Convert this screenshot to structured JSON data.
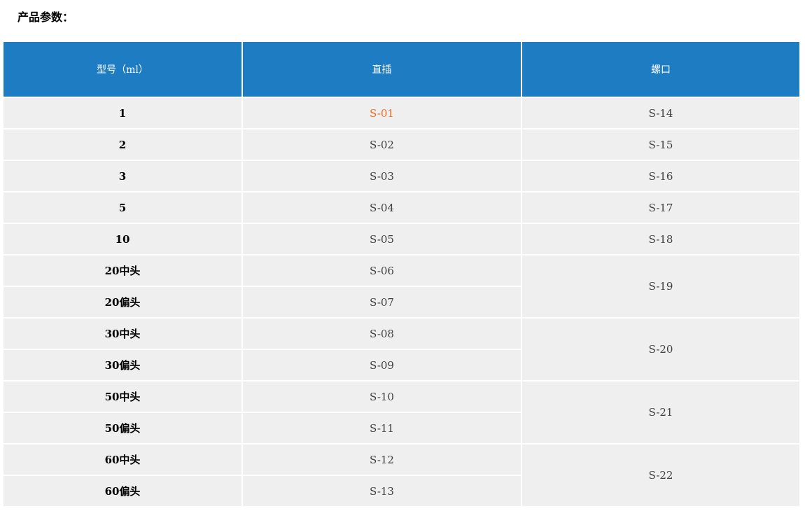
{
  "page": {
    "title": "产品参数："
  },
  "colors": {
    "header_bg": "#1e7cc2",
    "row_bg": "#efefef",
    "cell_text": "#3f3f3f",
    "model_text": "#000000",
    "highlight_text": "#ed6d1f"
  },
  "table": {
    "columns": [
      {
        "label": "型号（ml）"
      },
      {
        "label": "直插"
      },
      {
        "label": "螺口"
      }
    ],
    "rows": [
      {
        "model": "1",
        "zhicha": "S-01",
        "zhicha_highlight": true,
        "luokou": "S-14",
        "luokou_span": 1
      },
      {
        "model": "2",
        "zhicha": "S-02",
        "zhicha_highlight": false,
        "luokou": "S-15",
        "luokou_span": 1
      },
      {
        "model": "3",
        "zhicha": "S-03",
        "zhicha_highlight": false,
        "luokou": "S-16",
        "luokou_span": 1
      },
      {
        "model": "5",
        "zhicha": "S-04",
        "zhicha_highlight": false,
        "luokou": "S-17",
        "luokou_span": 1
      },
      {
        "model": "10",
        "zhicha": "S-05",
        "zhicha_highlight": false,
        "luokou": "S-18",
        "luokou_span": 1
      },
      {
        "model": "20中头",
        "zhicha": "S-06",
        "zhicha_highlight": false,
        "luokou": "S-19",
        "luokou_span": 2
      },
      {
        "model": "20偏头",
        "zhicha": "S-07",
        "zhicha_highlight": false,
        "luokou": null,
        "luokou_span": 0
      },
      {
        "model": "30中头",
        "zhicha": "S-08",
        "zhicha_highlight": false,
        "luokou": "S-20",
        "luokou_span": 2
      },
      {
        "model": "30偏头",
        "zhicha": "S-09",
        "zhicha_highlight": false,
        "luokou": null,
        "luokou_span": 0
      },
      {
        "model": "50中头",
        "zhicha": "S-10",
        "zhicha_highlight": false,
        "luokou": "S-21",
        "luokou_span": 2
      },
      {
        "model": "50偏头",
        "zhicha": "S-11",
        "zhicha_highlight": false,
        "luokou": null,
        "luokou_span": 0
      },
      {
        "model": "60中头",
        "zhicha": "S-12",
        "zhicha_highlight": false,
        "luokou": "S-22",
        "luokou_span": 2
      },
      {
        "model": "60偏头",
        "zhicha": "S-13",
        "zhicha_highlight": false,
        "luokou": null,
        "luokou_span": 0
      }
    ]
  }
}
